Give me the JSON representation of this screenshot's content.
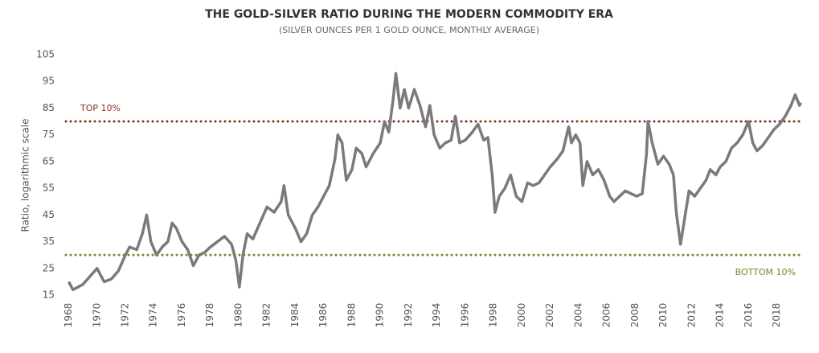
{
  "chart_data": {
    "type": "line",
    "title": "THE GOLD-SILVER RATIO DURING THE MODERN COMMODITY ERA",
    "subtitle": "(SILVER OUNCES PER 1 GOLD OUNCE, MONTHLY AVERAGE)",
    "y_label": "Ratio, logarithmic scale",
    "xlim": [
      1967.8,
      2019.9
    ],
    "xticks": [
      1968,
      1970,
      1972,
      1974,
      1976,
      1978,
      1980,
      1982,
      1984,
      1986,
      1988,
      1990,
      1992,
      1994,
      1996,
      1998,
      2000,
      2002,
      2004,
      2006,
      2008,
      2010,
      2012,
      2014,
      2016,
      2018
    ],
    "ylim": [
      15,
      105
    ],
    "yticks": [
      15,
      25,
      35,
      45,
      55,
      65,
      75,
      85,
      95,
      105
    ],
    "reference_lines": [
      {
        "label": "TOP 10%",
        "value": 80,
        "color": "#8b2e1f"
      },
      {
        "label": "BOTTOM 10%",
        "value": 30,
        "color": "#6a8f2a"
      }
    ],
    "series": [
      {
        "color": "#7a7a7a",
        "x": [
          1968,
          1968.3,
          1969,
          1969.5,
          1970,
          1970.5,
          1971,
          1971.5,
          1972,
          1972.3,
          1972.8,
          1973.2,
          1973.5,
          1973.8,
          1974.2,
          1974.6,
          1975,
          1975.3,
          1975.6,
          1976,
          1976.4,
          1976.8,
          1977.2,
          1977.6,
          1978,
          1978.5,
          1979,
          1979.5,
          1979.8,
          1980.05,
          1980.3,
          1980.6,
          1981,
          1981.5,
          1982,
          1982.5,
          1983,
          1983.2,
          1983.5,
          1984,
          1984.4,
          1984.8,
          1985.2,
          1985.6,
          1986,
          1986.4,
          1986.8,
          1987,
          1987.3,
          1987.6,
          1988,
          1988.3,
          1988.7,
          1989,
          1989.5,
          1990,
          1990.3,
          1990.6,
          1990.9,
          1991.1,
          1991.4,
          1991.7,
          1992,
          1992.4,
          1992.8,
          1993.2,
          1993.5,
          1993.8,
          1994.2,
          1994.6,
          1995,
          1995.3,
          1995.6,
          1996,
          1996.5,
          1996.9,
          1997.3,
          1997.6,
          1997.9,
          1998.1,
          1998.4,
          1998.8,
          1999.2,
          1999.6,
          2000,
          2000.4,
          2000.8,
          2001.2,
          2001.6,
          2002,
          2002.5,
          2002.9,
          2003.3,
          2003.5,
          2003.8,
          2004.1,
          2004.3,
          2004.6,
          2005,
          2005.4,
          2005.8,
          2006.2,
          2006.5,
          2006.9,
          2007.3,
          2007.7,
          2008.1,
          2008.5,
          2008.8,
          2008.9,
          2009.2,
          2009.6,
          2010,
          2010.4,
          2010.7,
          2010.9,
          2011.2,
          2011.5,
          2011.8,
          2012.2,
          2012.6,
          2013,
          2013.3,
          2013.7,
          2014,
          2014.4,
          2014.8,
          2015.2,
          2015.6,
          2016,
          2016.3,
          2016.6,
          2017,
          2017.4,
          2017.8,
          2018.2,
          2018.6,
          2019,
          2019.3,
          2019.6,
          2019.7
        ],
        "values": [
          20,
          17,
          19,
          22,
          25,
          20,
          21,
          24,
          30,
          33,
          32,
          38,
          45,
          35,
          30,
          33,
          35,
          42,
          40,
          35,
          32,
          26,
          30,
          31,
          33,
          35,
          37,
          34,
          28,
          18,
          30,
          38,
          36,
          42,
          48,
          46,
          50,
          56,
          45,
          40,
          35,
          38,
          45,
          48,
          52,
          56,
          66,
          75,
          72,
          58,
          62,
          70,
          68,
          63,
          68,
          72,
          80,
          76,
          88,
          98,
          85,
          92,
          85,
          92,
          86,
          78,
          86,
          75,
          70,
          72,
          73,
          82,
          72,
          73,
          76,
          79,
          73,
          74,
          60,
          46,
          52,
          55,
          60,
          52,
          50,
          57,
          56,
          57,
          60,
          63,
          66,
          69,
          78,
          72,
          75,
          72,
          56,
          65,
          60,
          62,
          58,
          52,
          50,
          52,
          54,
          53,
          52,
          53,
          68,
          80,
          72,
          64,
          67,
          64,
          60,
          46,
          34,
          44,
          54,
          52,
          55,
          58,
          62,
          60,
          63,
          65,
          70,
          72,
          75,
          80,
          72,
          69,
          71,
          74,
          77,
          79,
          82,
          86,
          90,
          86,
          87
        ]
      }
    ]
  }
}
